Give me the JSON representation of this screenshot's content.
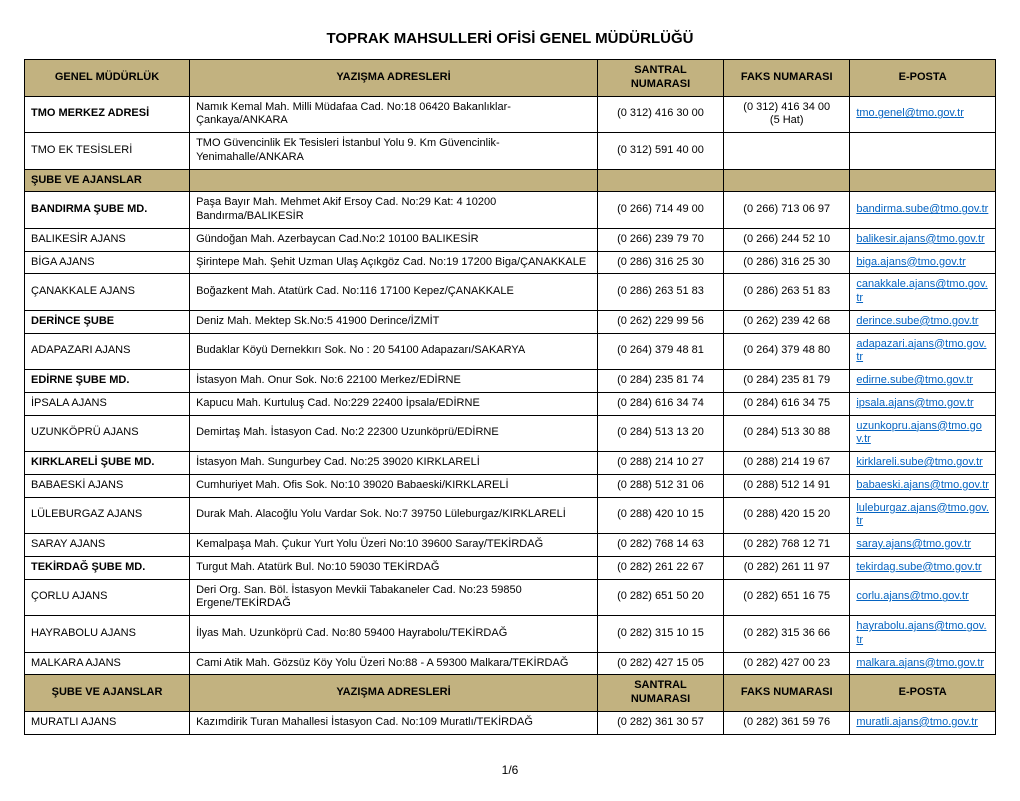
{
  "title": "TOPRAK MAHSULLERİ OFİSİ GENEL MÜDÜRLÜĞÜ",
  "page_number": "1/6",
  "header_bg": "#c2b280",
  "header": {
    "org": "GENEL MÜDÜRLÜK",
    "addr": "YAZIŞMA ADRESLERİ",
    "phone": "SANTRAL NUMARASI",
    "fax": "FAKS NUMARASI",
    "email": "E-POSTA"
  },
  "header2": {
    "org": "ŞUBE VE AJANSLAR",
    "addr": "YAZIŞMA ADRESLERİ",
    "phone": "SANTRAL NUMARASI",
    "fax": "FAKS NUMARASI",
    "email": "E-POSTA"
  },
  "section1_label": "ŞUBE VE AJANSLAR",
  "rows_top": [
    {
      "org": "TMO MERKEZ ADRESİ",
      "bold": true,
      "addr": "Namık Kemal Mah. Milli Müdafaa Cad. No:18  06420  Bakanlıklar-Çankaya/ANKARA",
      "phone": "(0 312) 416 30 00",
      "fax": "(0 312) 416 34 00",
      "fax_sub": "(5 Hat)",
      "email": "tmo.genel@tmo.gov.tr"
    },
    {
      "org": "TMO EK TESİSLERİ",
      "bold": false,
      "addr": "TMO Güvencinlik Ek Tesisleri İstanbul Yolu 9. Km Güvencinlik-Yenimahalle/ANKARA",
      "phone": "(0 312) 591 40 00",
      "fax": "",
      "email": ""
    }
  ],
  "rows_main": [
    {
      "org": "BANDIRMA ŞUBE MD.",
      "bold": true,
      "addr": "Paşa Bayır Mah. Mehmet Akif Ersoy Cad. No:29 Kat: 4 10200 Bandırma/BALIKESİR",
      "phone": "(0 266) 714 49 00",
      "fax": "(0 266) 713 06 97",
      "email": "bandirma.sube@tmo.gov.tr"
    },
    {
      "org": "BALIKESİR AJANS",
      "bold": false,
      "addr": "Gündoğan Mah. Azerbaycan Cad.No:2 10100 BALIKESİR",
      "phone": "(0 266) 239 79 70",
      "fax": "(0 266) 244 52 10",
      "email": "balikesir.ajans@tmo.gov.tr"
    },
    {
      "org": "BİGA AJANS",
      "bold": false,
      "addr": "Şirintepe Mah. Şehit Uzman Ulaş Açıkgöz Cad. No:19 17200 Biga/ÇANAKKALE",
      "phone": "(0 286) 316 25 30",
      "fax": "(0 286) 316 25 30",
      "email": "biga.ajans@tmo.gov.tr"
    },
    {
      "org": "ÇANAKKALE AJANS",
      "bold": false,
      "addr": "Boğazkent Mah. Atatürk Cad. No:116 17100 Kepez/ÇANAKKALE",
      "phone": "(0 286) 263 51 83",
      "fax": "(0 286)  263 51 83",
      "email": "canakkale.ajans@tmo.gov.tr"
    },
    {
      "org": "DERİNCE ŞUBE",
      "bold": true,
      "addr": "Deniz Mah. Mektep Sk.No:5 41900 Derince/İZMİT",
      "phone": "(0 262) 229 99 56",
      "fax": "(0 262) 239 42 68",
      "email": "derince.sube@tmo.gov.tr"
    },
    {
      "org": "ADAPAZARI AJANS",
      "bold": false,
      "addr": "Budaklar Köyü Dernekkırı Sok. No : 20 54100 Adapazarı/SAKARYA",
      "phone": "(0 264) 379 48 81",
      "fax": "(0 264) 379 48 80",
      "email": "adapazari.ajans@tmo.gov.tr "
    },
    {
      "org": "EDİRNE ŞUBE MD.",
      "bold": true,
      "addr": "İstasyon Mah. Onur Sok. No:6 22100 Merkez/EDİRNE",
      "phone": "(0 284) 235 81 74",
      "fax": "(0 284) 235 81 79",
      "email": "edirne.sube@tmo.gov.tr"
    },
    {
      "org": "İPSALA AJANS",
      "bold": false,
      "addr": "Kapucu Mah. Kurtuluş Cad. No:229 22400 İpsala/EDİRNE",
      "phone": "(0 284) 616 34 74",
      "fax": "(0 284) 616 34 75",
      "email": "ipsala.ajans@tmo.gov.tr"
    },
    {
      "org": "UZUNKÖPRÜ AJANS",
      "bold": false,
      "addr": "Demirtaş Mah. İstasyon Cad. No:2 22300 Uzunköprü/EDİRNE",
      "phone": "(0 284) 513 13 20",
      "fax": "(0 284) 513 30 88",
      "email": "uzunkopru.ajans@tmo.gov.tr"
    },
    {
      "org": "KIRKLARELİ ŞUBE MD.",
      "bold": true,
      "addr": "İstasyon Mah. Sungurbey Cad. No:25 39020 KIRKLARELİ",
      "phone": "(0 288) 214 10 27",
      "fax": "(0 288) 214 19 67",
      "email": "kirklareli.sube@tmo.gov.tr"
    },
    {
      "org": "BABAESKİ AJANS",
      "bold": false,
      "addr": "Cumhuriyet Mah. Ofis Sok. No:10 39020 Babaeski/KIRKLARELİ",
      "phone": "(0 288) 512  31 06",
      "fax": "(0 288) 512 14 91",
      "email": "babaeski.ajans@tmo.gov.tr"
    },
    {
      "org": "LÜLEBURGAZ AJANS",
      "bold": false,
      "addr": "Durak Mah. Alacoğlu Yolu Vardar Sok. No:7 39750 Lüleburgaz/KIRKLARELİ",
      "phone": "(0 288) 420 10 15",
      "fax": "(0 288) 420 15 20",
      "email": "luleburgaz.ajans@tmo.gov.tr"
    },
    {
      "org": "SARAY AJANS",
      "bold": false,
      "addr": "Kemalpaşa Mah. Çukur Yurt Yolu Üzeri No:10 39600 Saray/TEKİRDAĞ",
      "phone": "(0 282) 768 14 63",
      "fax": "(0 282) 768 12 71",
      "email": "saray.ajans@tmo.gov.tr"
    },
    {
      "org": "TEKİRDAĞ ŞUBE MD.",
      "bold": true,
      "addr": "Turgut Mah. Atatürk Bul. No:10 59030 TEKİRDAĞ",
      "phone": "(0 282) 261 22 67",
      "fax": "(0 282) 261 11 97",
      "email": "tekirdag.sube@tmo.gov.tr"
    },
    {
      "org": "ÇORLU AJANS",
      "bold": false,
      "addr": "Deri Org. San. Böl. İstasyon Mevkii Tabakaneler Cad. No:23 59850 Ergene/TEKİRDAĞ",
      "phone": "(0 282) 651 50 20",
      "fax": "(0 282) 651 16 75",
      "email": "corlu.ajans@tmo.gov.tr"
    },
    {
      "org": "HAYRABOLU AJANS",
      "bold": false,
      "addr": "İlyas Mah. Uzunköprü Cad. No:80 59400 Hayrabolu/TEKİRDAĞ",
      "phone": "(0 282) 315 10 15",
      "fax": "(0 282) 315 36 66",
      "email": "hayrabolu.ajans@tmo.gov.tr"
    },
    {
      "org": "MALKARA AJANS",
      "bold": false,
      "addr": "Cami Atik Mah. Gözsüz Köy Yolu Üzeri No:88 - A 59300 Malkara/TEKİRDAĞ",
      "phone": "(0 282) 427 15 05",
      "fax": "(0 282) 427 00 23",
      "email": "malkara.ajans@tmo.gov.tr"
    }
  ],
  "rows_bottom": [
    {
      "org": "MURATLI AJANS",
      "bold": false,
      "addr": "Kazımdirik Turan Mahallesi İstasyon Cad. No:109 Muratlı/TEKİRDAĞ",
      "phone": "(0 282) 361 30 57",
      "fax": "(0 282) 361 59 76",
      "email": "muratli.ajans@tmo.gov.tr"
    }
  ]
}
